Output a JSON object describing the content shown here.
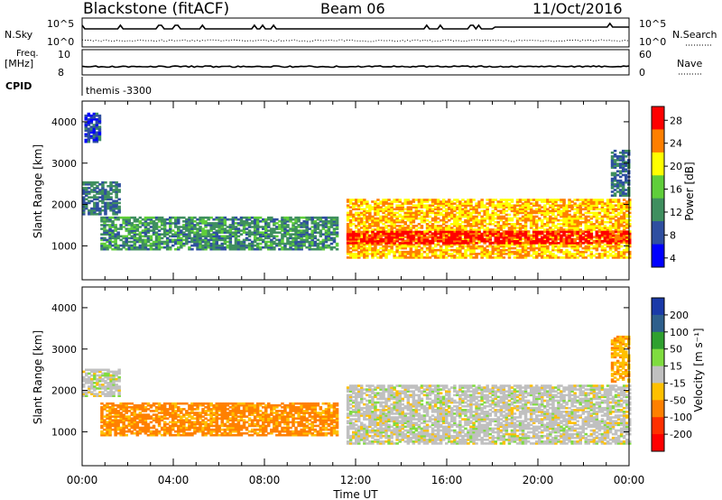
{
  "header": {
    "title": "Blackstone (fitACF)",
    "beam": "Beam 06",
    "date": "11/Oct/2016"
  },
  "strip": {
    "nsky_label": "N.Sky",
    "nsky_ticks": [
      "10^5",
      "10^0"
    ],
    "nsearch_label": "N.Search",
    "nsearch_ticks": [
      "10^5",
      "10^0"
    ],
    "freq_label_1": "Freq.",
    "freq_label_2": "[MHz]",
    "freq_ticks": [
      "10",
      "8"
    ],
    "nave_label": "Nave",
    "nave_ticks": [
      "60",
      "0"
    ],
    "cpid_label": "CPID",
    "cpid_value": "themis -3300"
  },
  "colorbars": {
    "power": {
      "label": "Power [dB]",
      "ticks": [
        "28",
        "24",
        "20",
        "16",
        "12",
        "8",
        "4"
      ],
      "colors": [
        "#ff0000",
        "#ff7f00",
        "#ffff00",
        "#5fce3a",
        "#3f8f5f",
        "#2f4fa0",
        "#0000ff"
      ]
    },
    "velocity": {
      "label": "Velocity [m s⁻¹]",
      "ticks": [
        "200",
        "100",
        "50",
        "15",
        "-15",
        "-50",
        "-100",
        "-200"
      ],
      "colors": [
        "#1a3aa8",
        "#2e5f8c",
        "#2fa02f",
        "#7fdc3f",
        "#c0c0c0",
        "#ffc000",
        "#ff8000",
        "#ff3000",
        "#ff0000"
      ]
    }
  },
  "chart_data": [
    {
      "type": "heatmap",
      "title": "Power [dB]",
      "xlabel": "Time UT",
      "ylabel": "Slant Range [km]",
      "x_ticks": [
        "00:00",
        "04:00",
        "08:00",
        "12:00",
        "16:00",
        "20:00",
        "00:00"
      ],
      "y_ticks": [
        "1000",
        "2000",
        "3000",
        "4000"
      ],
      "xlim_hours": [
        0,
        24
      ],
      "ylim_km": [
        180,
        4500
      ],
      "bands": [
        {
          "t0": 0.0,
          "t1": 1.6,
          "r0": 1750,
          "r1": 2550,
          "db": 10
        },
        {
          "t0": 0.1,
          "t1": 0.8,
          "r0": 3500,
          "r1": 4200,
          "db": 7
        },
        {
          "t0": 0.8,
          "t1": 11.2,
          "r0": 900,
          "r1": 1700,
          "db": 12
        },
        {
          "t0": 11.6,
          "t1": 24.0,
          "r0": 700,
          "r1": 2100,
          "db": 22
        },
        {
          "t0": 11.6,
          "t1": 24.0,
          "r0": 1050,
          "r1": 1350,
          "db": 28
        },
        {
          "t0": 23.2,
          "t1": 24.0,
          "r0": 2200,
          "r1": 3300,
          "db": 10
        }
      ]
    },
    {
      "type": "heatmap",
      "title": "Velocity [m s-1]",
      "xlabel": "Time UT",
      "ylabel": "Slant Range [km]",
      "x_ticks": [
        "00:00",
        "04:00",
        "08:00",
        "12:00",
        "16:00",
        "20:00",
        "00:00"
      ],
      "y_ticks": [
        "1000",
        "2000",
        "3000",
        "4000"
      ],
      "xlim_hours": [
        0,
        24
      ],
      "ylim_km": [
        180,
        4500
      ],
      "bands": [
        {
          "t0": 0.0,
          "t1": 1.6,
          "r0": 1850,
          "r1": 2500,
          "v": 0
        },
        {
          "t0": 0.8,
          "t1": 11.2,
          "r0": 900,
          "r1": 1700,
          "v": -60
        },
        {
          "t0": 11.6,
          "t1": 24.0,
          "r0": 700,
          "r1": 2100,
          "v": 0
        },
        {
          "t0": 23.2,
          "t1": 24.0,
          "r0": 2200,
          "r1": 3300,
          "v": -40
        }
      ]
    }
  ]
}
